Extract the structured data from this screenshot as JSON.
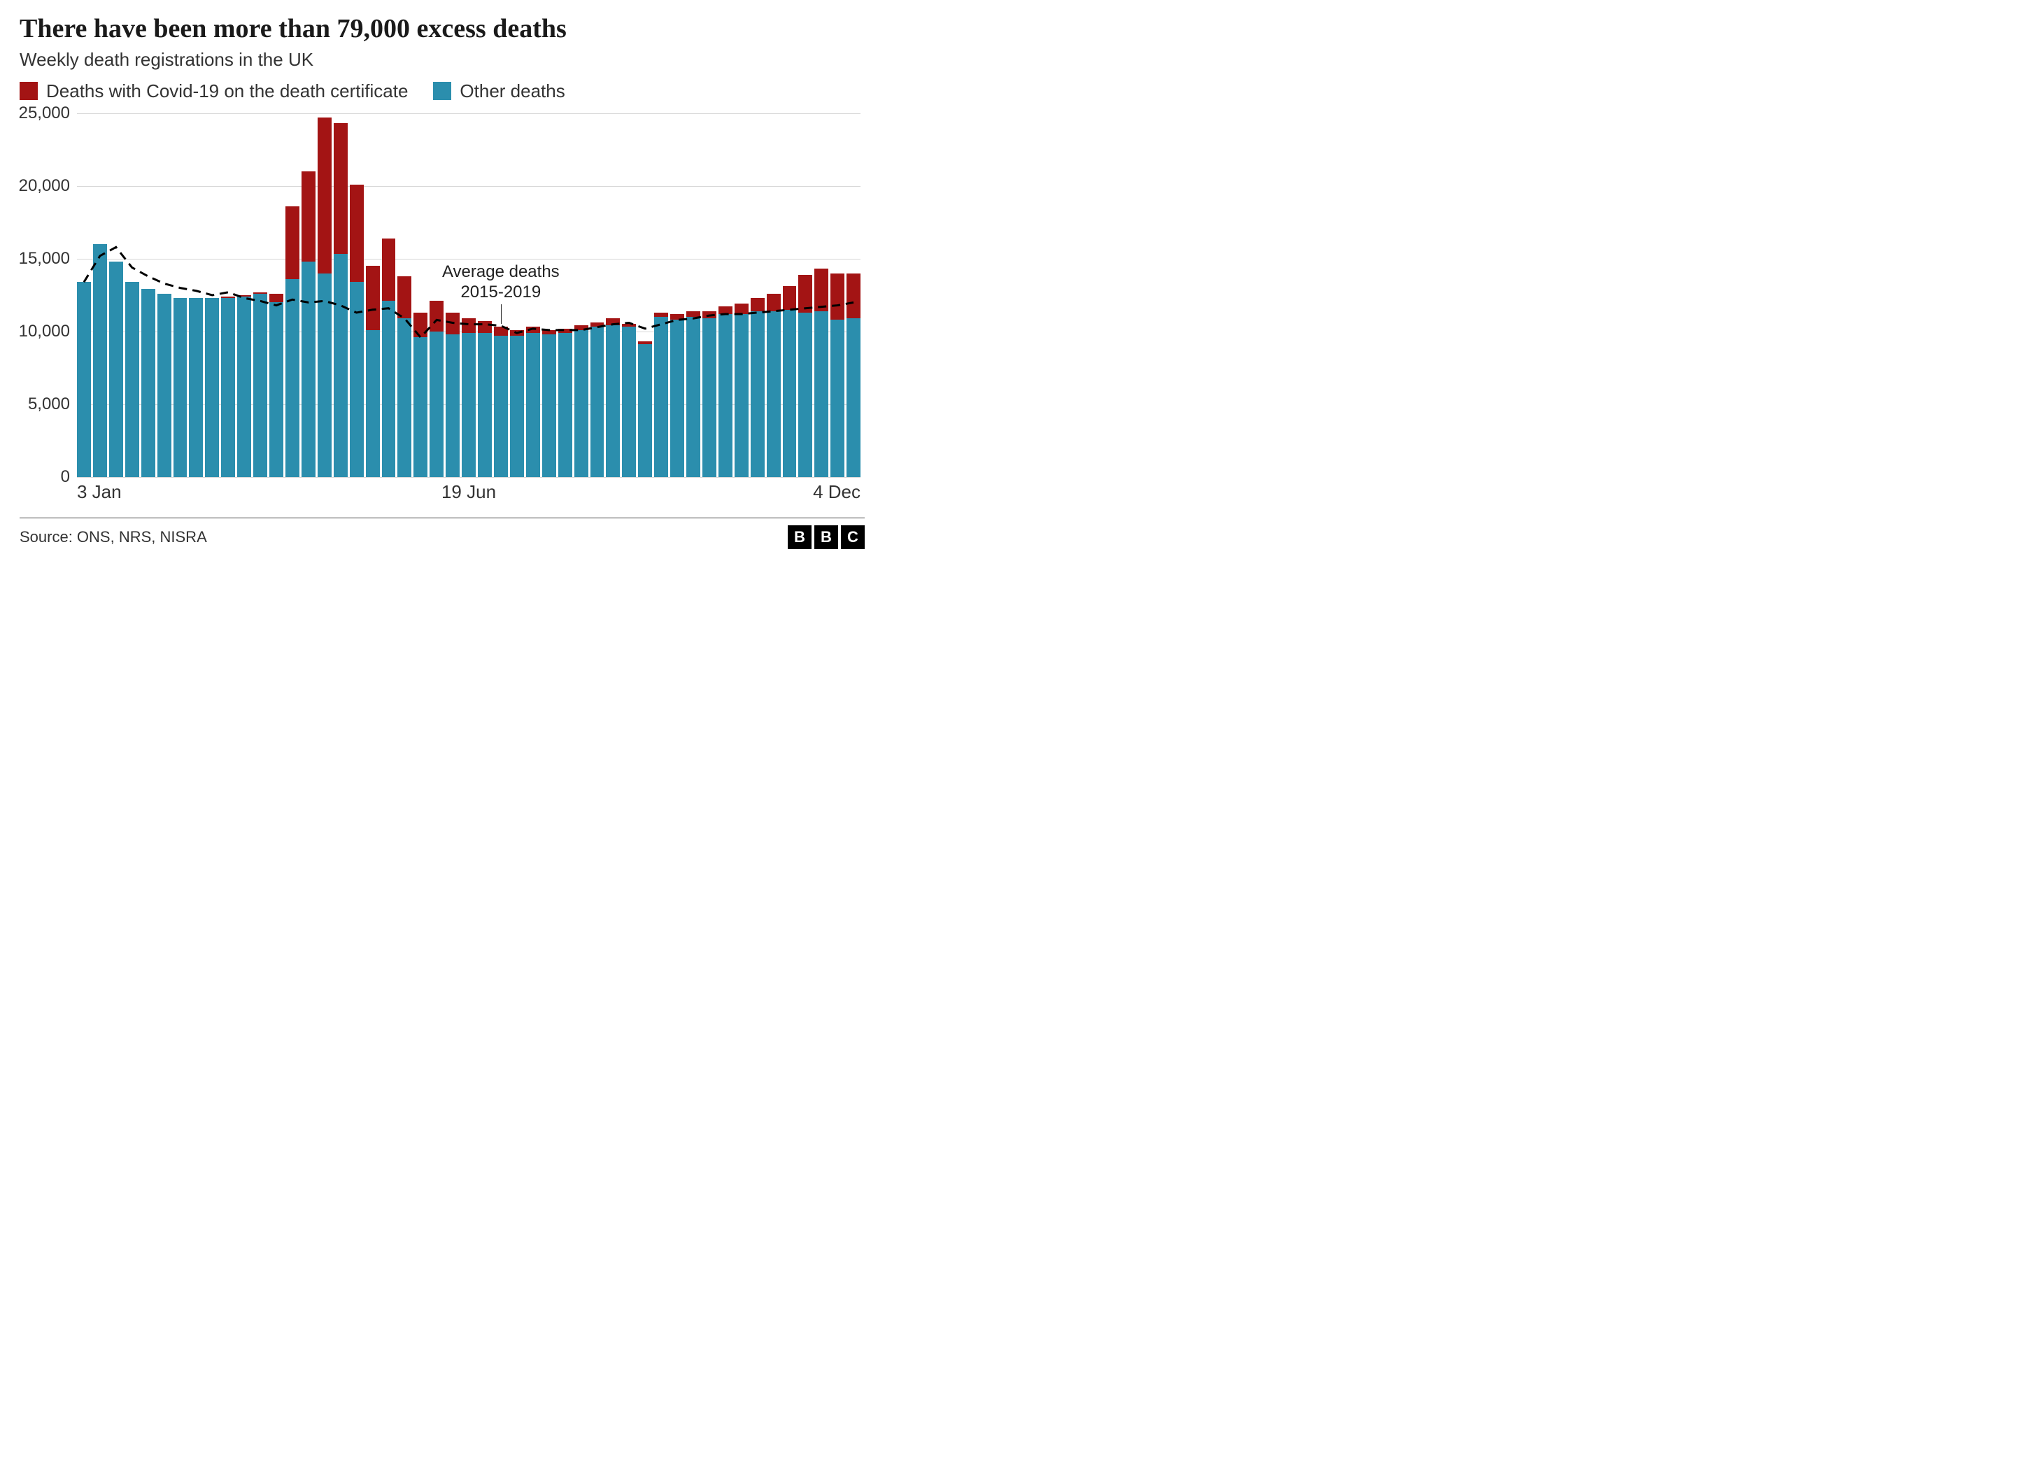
{
  "title": "There have been more than 79,000 excess deaths",
  "subtitle": "Weekly death registrations in the UK",
  "legend": {
    "covid": "Deaths with Covid-19 on the death certificate",
    "other": "Other deaths"
  },
  "annotation": {
    "line1": "Average deaths",
    "line2": "2015-2019"
  },
  "source": "Source: ONS, NRS, NISRA",
  "logo_letters": [
    "B",
    "B",
    "C"
  ],
  "chart": {
    "type": "stacked-bar-with-line",
    "y_max": 25000,
    "y_ticks": [
      0,
      5000,
      10000,
      15000,
      20000,
      25000
    ],
    "y_tick_labels": [
      "0",
      "5,000",
      "10,000",
      "15,000",
      "20,000",
      "25,000"
    ],
    "grid_color": "#d7d7d7",
    "background_color": "#ffffff",
    "colors": {
      "covid": "#a31414",
      "other": "#2b8ead",
      "avg_line": "#000000"
    },
    "x_labels": [
      {
        "text": "3 Jan",
        "index": 0,
        "align": "left"
      },
      {
        "text": "19 Jun",
        "index": 24,
        "align": "center"
      },
      {
        "text": "4 Dec",
        "index": 48,
        "align": "right"
      }
    ],
    "annotation_target_index": 26,
    "label_fontsize": 24,
    "avg_line_dash": "12 8",
    "avg_line_width": 3,
    "weeks": [
      {
        "other": 13400,
        "covid": 0,
        "avg": 13400
      },
      {
        "other": 16000,
        "covid": 0,
        "avg": 15200
      },
      {
        "other": 14800,
        "covid": 0,
        "avg": 15800
      },
      {
        "other": 13400,
        "covid": 0,
        "avg": 14400
      },
      {
        "other": 12900,
        "covid": 0,
        "avg": 13800
      },
      {
        "other": 12600,
        "covid": 0,
        "avg": 13300
      },
      {
        "other": 12300,
        "covid": 0,
        "avg": 13000
      },
      {
        "other": 12300,
        "covid": 0,
        "avg": 12800
      },
      {
        "other": 12300,
        "covid": 0,
        "avg": 12500
      },
      {
        "other": 12300,
        "covid": 100,
        "avg": 12700
      },
      {
        "other": 12400,
        "covid": 100,
        "avg": 12300
      },
      {
        "other": 12600,
        "covid": 100,
        "avg": 12100
      },
      {
        "other": 12000,
        "covid": 600,
        "avg": 11800
      },
      {
        "other": 13600,
        "covid": 5000,
        "avg": 12200
      },
      {
        "other": 14800,
        "covid": 6200,
        "avg": 12000
      },
      {
        "other": 14000,
        "covid": 10700,
        "avg": 12100
      },
      {
        "other": 15300,
        "covid": 9000,
        "avg": 11800
      },
      {
        "other": 13400,
        "covid": 6700,
        "avg": 11300
      },
      {
        "other": 10100,
        "covid": 4400,
        "avg": 11500
      },
      {
        "other": 12100,
        "covid": 4300,
        "avg": 11600
      },
      {
        "other": 10900,
        "covid": 2900,
        "avg": 10900
      },
      {
        "other": 9600,
        "covid": 1700,
        "avg": 9600
      },
      {
        "other": 10000,
        "covid": 2100,
        "avg": 10800
      },
      {
        "other": 9800,
        "covid": 1500,
        "avg": 10600
      },
      {
        "other": 9900,
        "covid": 1000,
        "avg": 10500
      },
      {
        "other": 9900,
        "covid": 800,
        "avg": 10500
      },
      {
        "other": 9700,
        "covid": 600,
        "avg": 10400
      },
      {
        "other": 9700,
        "covid": 400,
        "avg": 9900
      },
      {
        "other": 9900,
        "covid": 400,
        "avg": 10200
      },
      {
        "other": 9800,
        "covid": 300,
        "avg": 10100
      },
      {
        "other": 9900,
        "covid": 300,
        "avg": 10100
      },
      {
        "other": 10100,
        "covid": 300,
        "avg": 10100
      },
      {
        "other": 10300,
        "covid": 300,
        "avg": 10300
      },
      {
        "other": 10400,
        "covid": 500,
        "avg": 10500
      },
      {
        "other": 10300,
        "covid": 200,
        "avg": 10600
      },
      {
        "other": 9100,
        "covid": 200,
        "avg": 10200
      },
      {
        "other": 11000,
        "covid": 300,
        "avg": 10500
      },
      {
        "other": 10800,
        "covid": 400,
        "avg": 10800
      },
      {
        "other": 11000,
        "covid": 400,
        "avg": 10900
      },
      {
        "other": 10900,
        "covid": 500,
        "avg": 11100
      },
      {
        "other": 11200,
        "covid": 500,
        "avg": 11200
      },
      {
        "other": 11200,
        "covid": 700,
        "avg": 11200
      },
      {
        "other": 11400,
        "covid": 900,
        "avg": 11300
      },
      {
        "other": 11400,
        "covid": 1200,
        "avg": 11400
      },
      {
        "other": 11500,
        "covid": 1600,
        "avg": 11500
      },
      {
        "other": 11300,
        "covid": 2600,
        "avg": 11600
      },
      {
        "other": 11400,
        "covid": 2900,
        "avg": 11700
      },
      {
        "other": 10800,
        "covid": 3200,
        "avg": 11800
      },
      {
        "other": 10900,
        "covid": 3100,
        "avg": 12000
      }
    ]
  }
}
